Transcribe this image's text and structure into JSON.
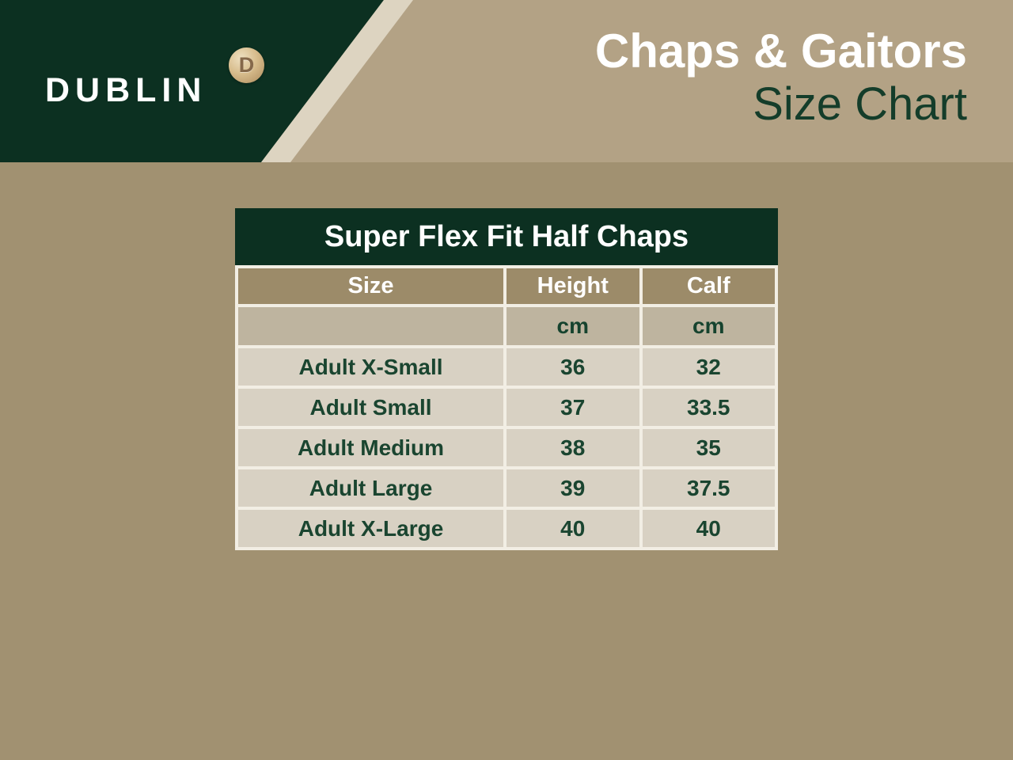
{
  "brand": {
    "name": "DUBLIN",
    "badge_letter": "D"
  },
  "header": {
    "title_line1": "Chaps & Gaitors",
    "title_line2": "Size Chart"
  },
  "chart_data": {
    "type": "table",
    "title": "Super Flex Fit Half Chaps",
    "columns": [
      "Size",
      "Height",
      "Calf"
    ],
    "units": [
      "",
      "cm",
      "cm"
    ],
    "rows": [
      {
        "size": "Adult X-Small",
        "height": "36",
        "calf": "32"
      },
      {
        "size": "Adult Small",
        "height": "37",
        "calf": "33.5"
      },
      {
        "size": "Adult Medium",
        "height": "38",
        "calf": "35"
      },
      {
        "size": "Adult Large",
        "height": "39",
        "calf": "37.5"
      },
      {
        "size": "Adult X-Large",
        "height": "40",
        "calf": "40"
      }
    ]
  },
  "colors": {
    "brand_green": "#0c3021",
    "text_green": "#1a4530",
    "header_tan": "#b3a285",
    "body_tan": "#a19171",
    "stripe_cream": "#ddd4c1",
    "column_header_brown": "#9c8b69",
    "units_row_beige": "#beb49f",
    "data_row_beige": "#d8d1c3",
    "border_white": "#f2eee4"
  }
}
